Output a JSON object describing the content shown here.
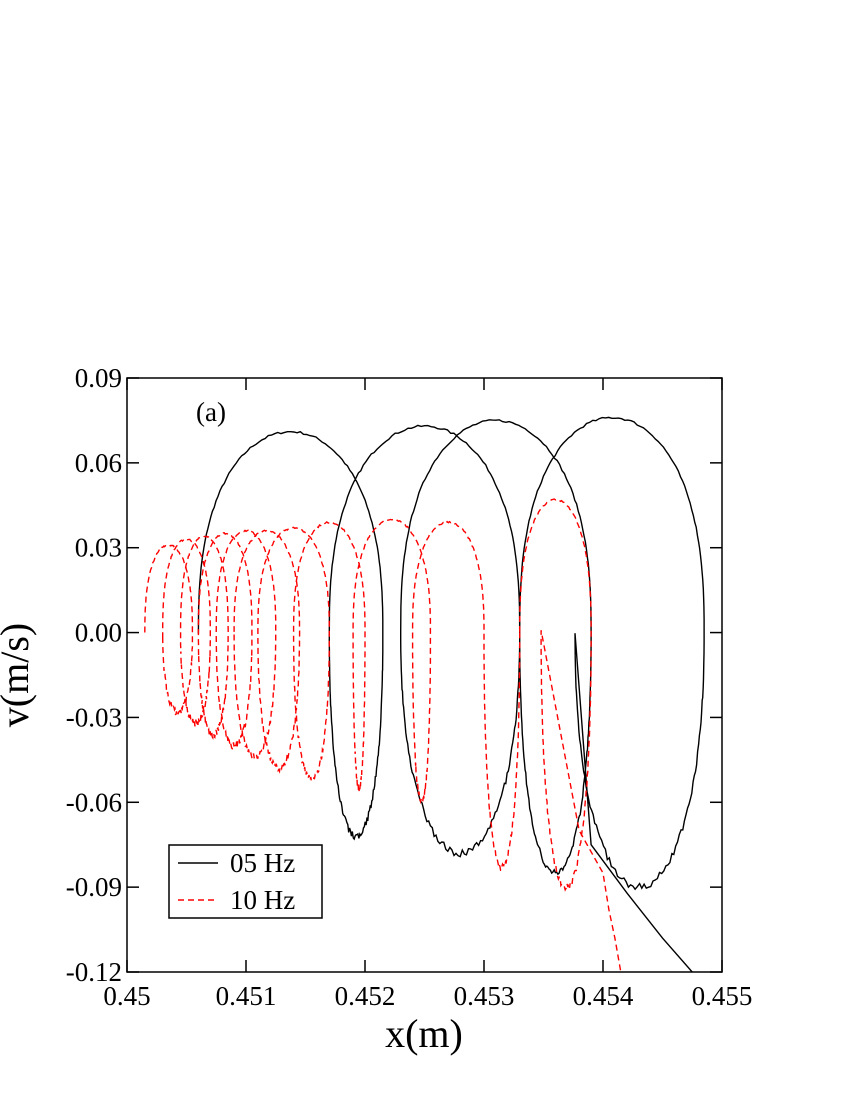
{
  "chart_data": {
    "type": "line",
    "title": "",
    "xlabel": "x(m)",
    "ylabel": "v(m/s)",
    "xlim": [
      0.45,
      0.455
    ],
    "ylim": [
      -0.12,
      0.09
    ],
    "x_ticks": [
      "0.45",
      "0.451",
      "0.452",
      "0.453",
      "0.454",
      "0.455"
    ],
    "y_ticks": [
      "0.09",
      "0.06",
      "0.03",
      "0.00",
      "-0.03",
      "-0.06",
      "-0.09",
      "-0.12"
    ],
    "annotation": "(a)",
    "grid": false,
    "legend": {
      "position": "bottom-left"
    },
    "series": [
      {
        "name": "05 Hz",
        "color": "#000000",
        "style": "solid",
        "loops": [
          {
            "x0": 0.4506,
            "width": 0.00155,
            "vmax": 0.071,
            "vmin": -0.072
          },
          {
            "x0": 0.4517,
            "width": 0.0016,
            "vmax": 0.073,
            "vmin": -0.078
          },
          {
            "x0": 0.4523,
            "width": 0.0016,
            "vmax": 0.075,
            "vmin": -0.085
          },
          {
            "x0": 0.4533,
            "width": 0.00155,
            "vmax": 0.076,
            "vmin": -0.09
          }
        ],
        "tail": [
          [
            0.4539,
            -0.075
          ],
          [
            0.4542,
            -0.092
          ],
          [
            0.4545,
            -0.108
          ],
          [
            0.45475,
            -0.12
          ]
        ]
      },
      {
        "name": "10 Hz",
        "color": "#ff0000",
        "style": "dashed",
        "loops": [
          {
            "x0": 0.45015,
            "width": 0.0004,
            "vmax": 0.031,
            "vmin": -0.028
          },
          {
            "x0": 0.4503,
            "width": 0.0004,
            "vmax": 0.033,
            "vmin": -0.032
          },
          {
            "x0": 0.45045,
            "width": 0.0004,
            "vmax": 0.034,
            "vmin": -0.036
          },
          {
            "x0": 0.4506,
            "width": 0.00045,
            "vmax": 0.035,
            "vmin": -0.04
          },
          {
            "x0": 0.45075,
            "width": 0.0005,
            "vmax": 0.036,
            "vmin": -0.044
          },
          {
            "x0": 0.4509,
            "width": 0.00055,
            "vmax": 0.036,
            "vmin": -0.048
          },
          {
            "x0": 0.4511,
            "width": 0.0006,
            "vmax": 0.037,
            "vmin": -0.052
          },
          {
            "x0": 0.4514,
            "width": 0.0006,
            "vmax": 0.039,
            "vmin": -0.055
          },
          {
            "x0": 0.4519,
            "width": 0.00065,
            "vmax": 0.04,
            "vmin": -0.06
          },
          {
            "x0": 0.4524,
            "width": 0.0006,
            "vmax": 0.039,
            "vmin": -0.083
          },
          {
            "x0": 0.4533,
            "width": 0.0006,
            "vmax": 0.047,
            "vmin": -0.09
          }
        ],
        "tail": [
          [
            0.4538,
            -0.07
          ],
          [
            0.454,
            -0.085
          ],
          [
            0.45405,
            -0.098
          ],
          [
            0.4541,
            -0.108
          ],
          [
            0.45415,
            -0.12
          ]
        ]
      }
    ]
  }
}
